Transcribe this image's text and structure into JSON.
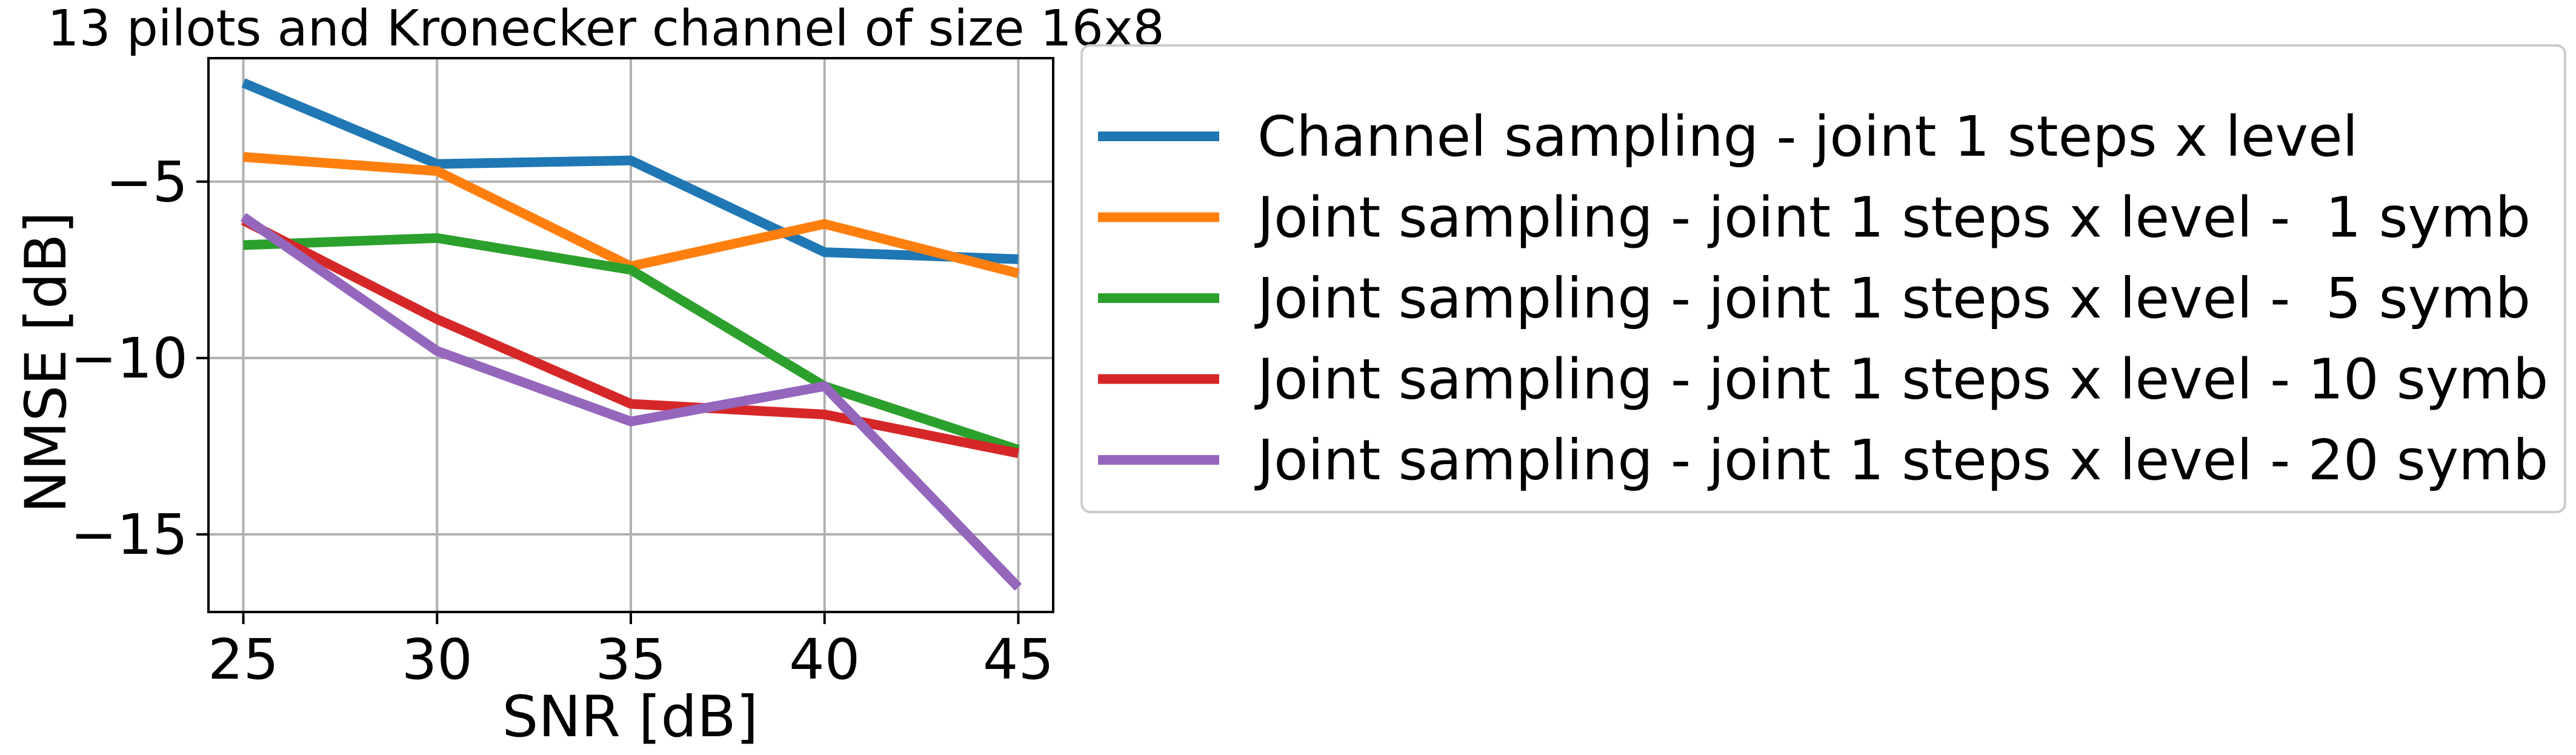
{
  "chart_data": {
    "type": "line",
    "title": "13 pilots and Kronecker channel of size 16x8",
    "xlabel": "SNR [dB]",
    "ylabel": "NMSE [dB]",
    "x": [
      25,
      30,
      35,
      40,
      45
    ],
    "xticks": [
      25,
      30,
      35,
      40,
      45
    ],
    "yticks": [
      -5,
      -10,
      -15
    ],
    "ytick_labels": [
      "−5",
      "−10",
      "−15"
    ],
    "xlim": [
      24.1,
      45.9
    ],
    "ylim": [
      -17.2,
      -1.5
    ],
    "grid": true,
    "legend_position": "outside-right",
    "series": [
      {
        "name": "Channel sampling - joint 1 steps x level",
        "color": "#1f77b4",
        "values": [
          -2.2,
          -4.5,
          -4.4,
          -7.0,
          -7.2
        ]
      },
      {
        "name": "Joint sampling - joint 1 steps x level -  1 symb",
        "color": "#ff7f0e",
        "values": [
          -4.3,
          -4.7,
          -7.4,
          -6.2,
          -7.6
        ]
      },
      {
        "name": "Joint sampling - joint 1 steps x level -  5 symb",
        "color": "#2ca02c",
        "values": [
          -6.8,
          -6.6,
          -7.5,
          -10.8,
          -12.6
        ]
      },
      {
        "name": "Joint sampling - joint 1 steps x level - 10 symb",
        "color": "#d62728",
        "values": [
          -6.1,
          -8.9,
          -11.3,
          -11.6,
          -12.7
        ]
      },
      {
        "name": "Joint sampling - joint 1 steps x level - 20 symb",
        "color": "#9467bd",
        "values": [
          -6.0,
          -9.8,
          -11.8,
          -10.8,
          -16.5
        ]
      }
    ]
  }
}
